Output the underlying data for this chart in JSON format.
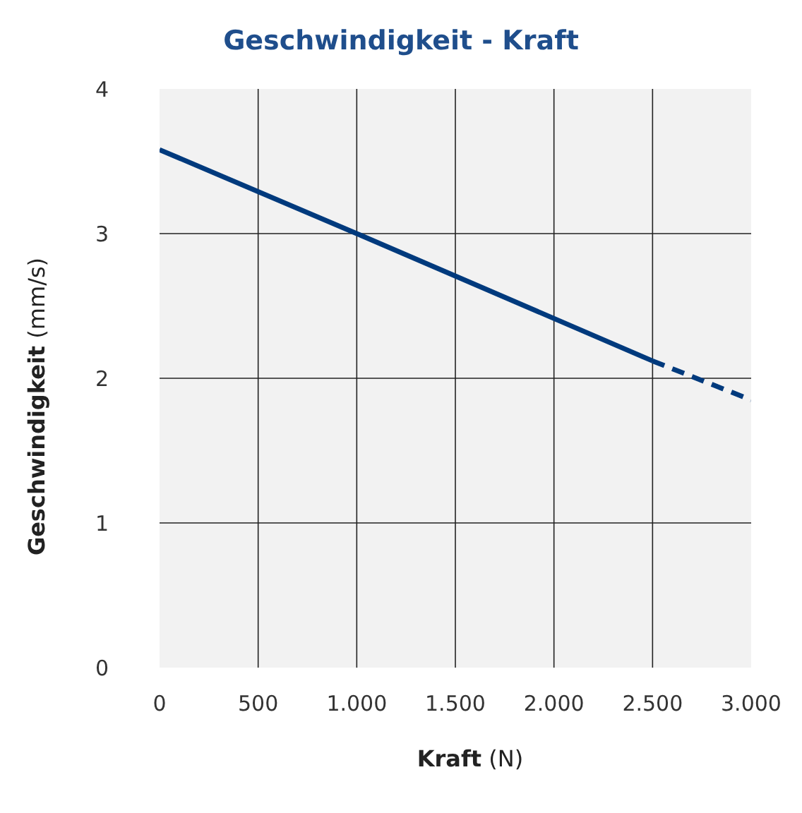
{
  "chart_data": {
    "type": "line",
    "title": "Geschwindigkeit - Kraft",
    "xlabel": "Kraft (N)",
    "ylabel": "Geschwindigkeit (mm/s)",
    "xlim": [
      0,
      3000
    ],
    "xticks": [
      0,
      500,
      {
        "value": 1000,
        "label": "1.000"
      },
      {
        "value": 1500,
        "label": "1.500"
      },
      {
        "value": 2000,
        "label": "2.000"
      },
      {
        "value": 2500,
        "label": "2.500"
      },
      {
        "value": 3000,
        "label": "3.000"
      }
    ],
    "ylim": [
      0,
      4
    ],
    "yticks": [
      0,
      1,
      2,
      3,
      4
    ],
    "grid": true,
    "marker": "none",
    "series": [
      {
        "color": "#003a7d",
        "x": [
          0,
          1000,
          2500
        ],
        "values": [
          3.58,
          3.0,
          2.12
        ],
        "line_style": "solid"
      },
      {
        "color": "#003a7d",
        "x": [
          2500,
          3000
        ],
        "values": [
          2.12,
          1.85
        ],
        "line_style": "dashed"
      }
    ]
  }
}
